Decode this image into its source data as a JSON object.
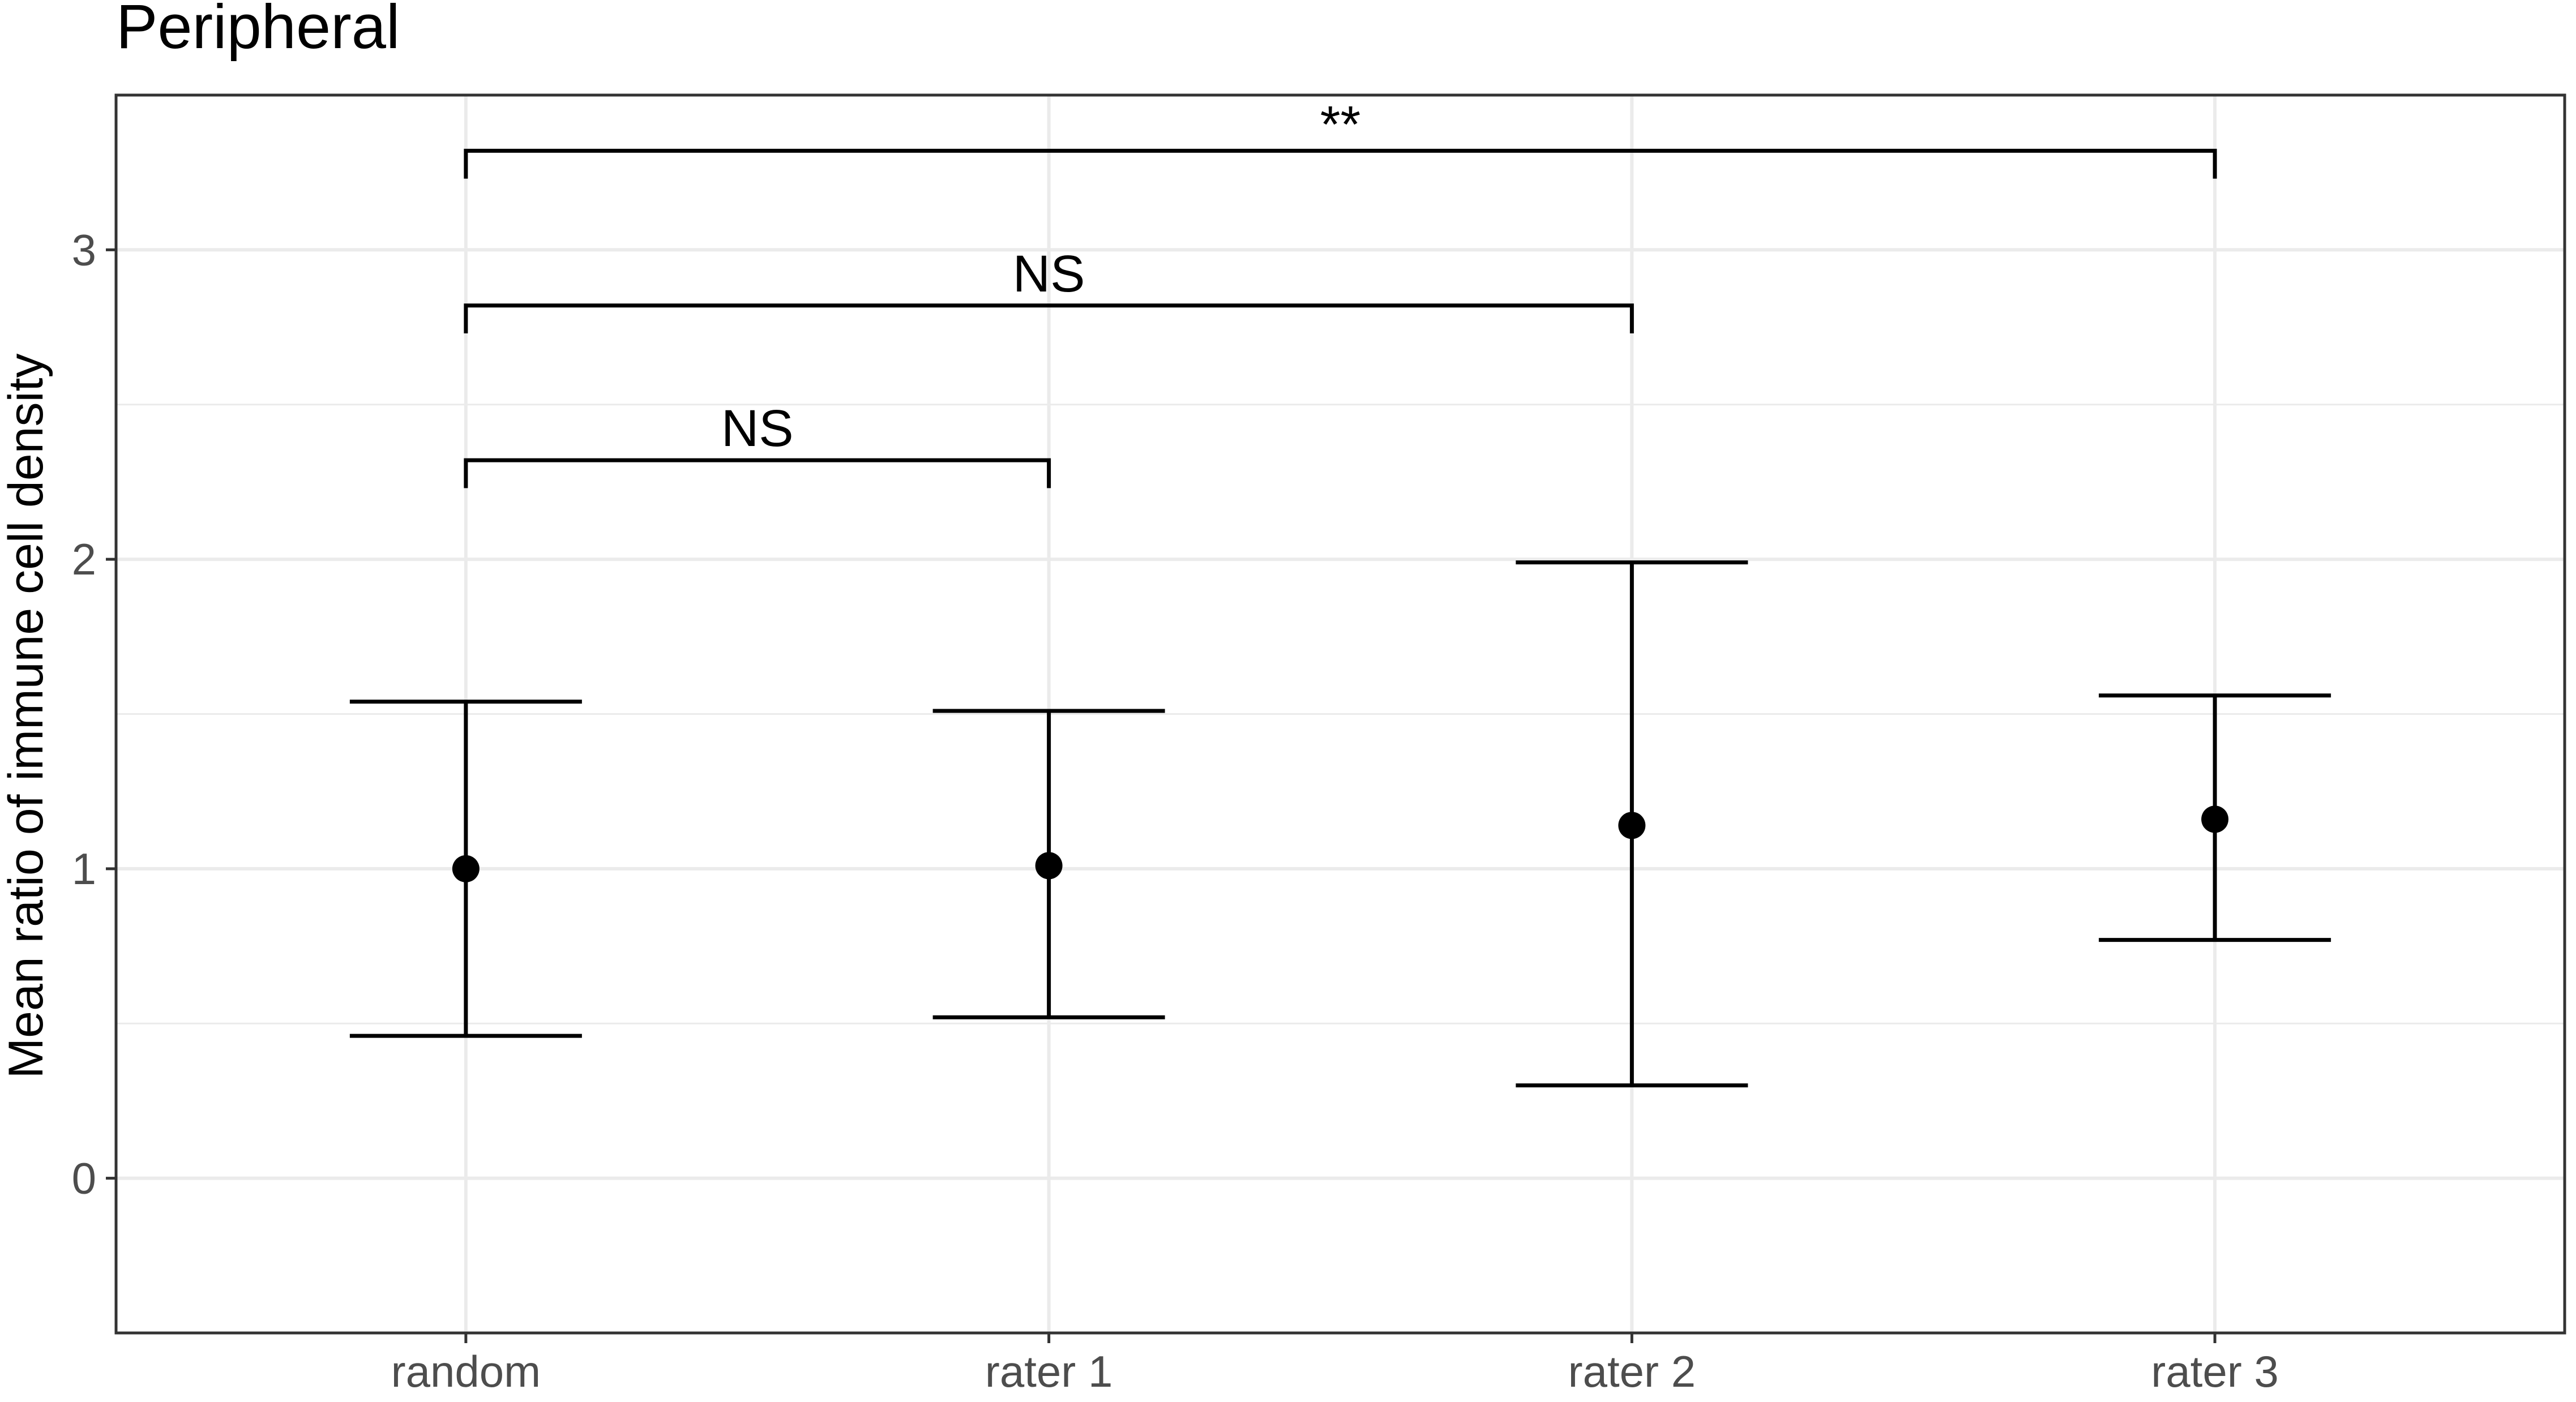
{
  "chart_data": {
    "type": "errorbar",
    "title": "Peripheral",
    "xlabel": "",
    "ylabel": "Mean ratio of immune cell density",
    "categories": [
      "random",
      "rater 1",
      "rater 2",
      "rater 3"
    ],
    "series": [
      {
        "values": [
          1.0,
          1.01,
          1.14,
          1.16
        ],
        "lower": [
          0.46,
          0.52,
          0.3,
          0.77
        ],
        "upper": [
          1.54,
          1.51,
          1.99,
          1.56
        ]
      }
    ],
    "ylim": [
      -0.5,
      3.5
    ],
    "yticks": [
      0,
      1,
      2,
      3
    ],
    "ytick_labels": [
      "0",
      "1",
      "2",
      "3"
    ],
    "grid": true,
    "legend": "none",
    "annotations": [
      {
        "from": "random",
        "to": "rater 1",
        "y": 2.32,
        "label": "NS"
      },
      {
        "from": "random",
        "to": "rater 2",
        "y": 2.82,
        "label": "NS"
      },
      {
        "from": "random",
        "to": "rater 3",
        "y": 3.32,
        "label": "**"
      }
    ],
    "colors": {
      "marks": "#000000",
      "grid": "#ebebeb",
      "panel_border": "#333333",
      "tick_label": "#4d4d4d"
    }
  }
}
